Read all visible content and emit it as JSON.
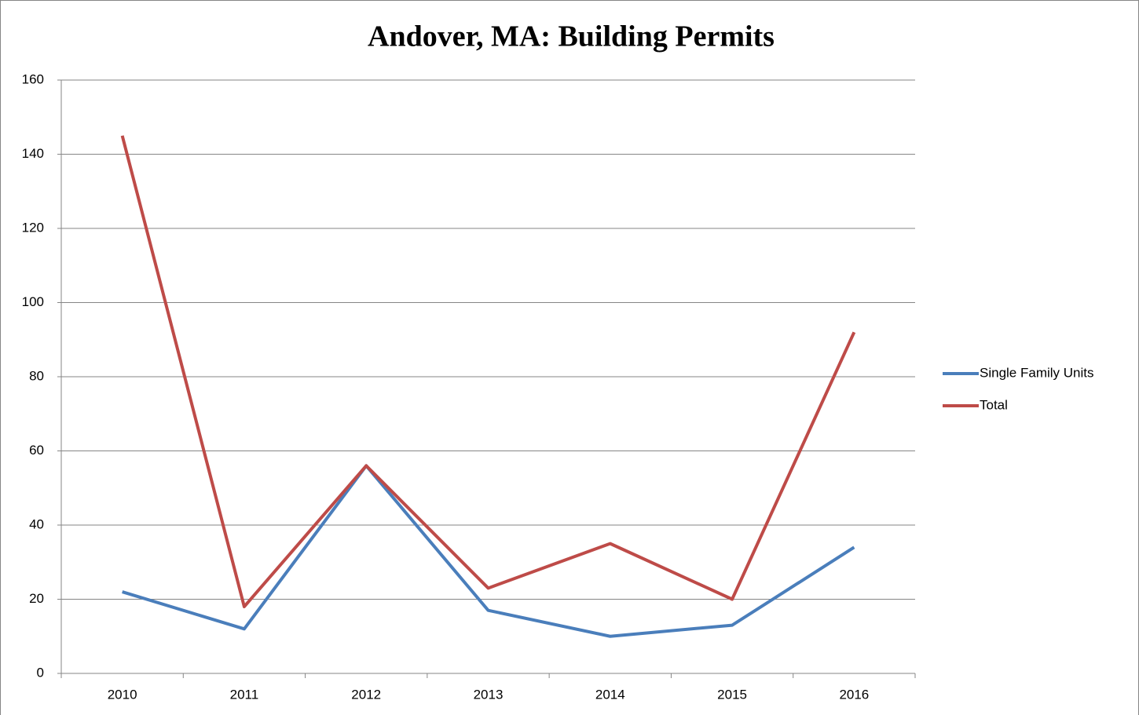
{
  "chart_data": {
    "type": "line",
    "title": "Andover, MA: Building Permits",
    "categories": [
      "2010",
      "2011",
      "2012",
      "2013",
      "2014",
      "2015",
      "2016"
    ],
    "series": [
      {
        "name": "Single Family Units",
        "color": "#4a7ebb",
        "values": [
          22,
          12,
          56,
          17,
          10,
          13,
          34
        ]
      },
      {
        "name": "Total",
        "color": "#be4b48",
        "values": [
          145,
          18,
          56,
          23,
          35,
          20,
          92
        ]
      }
    ],
    "ylim": [
      0,
      160
    ],
    "yticks": [
      0,
      20,
      40,
      60,
      80,
      100,
      120,
      140,
      160
    ],
    "grid": true,
    "legend": "right"
  }
}
